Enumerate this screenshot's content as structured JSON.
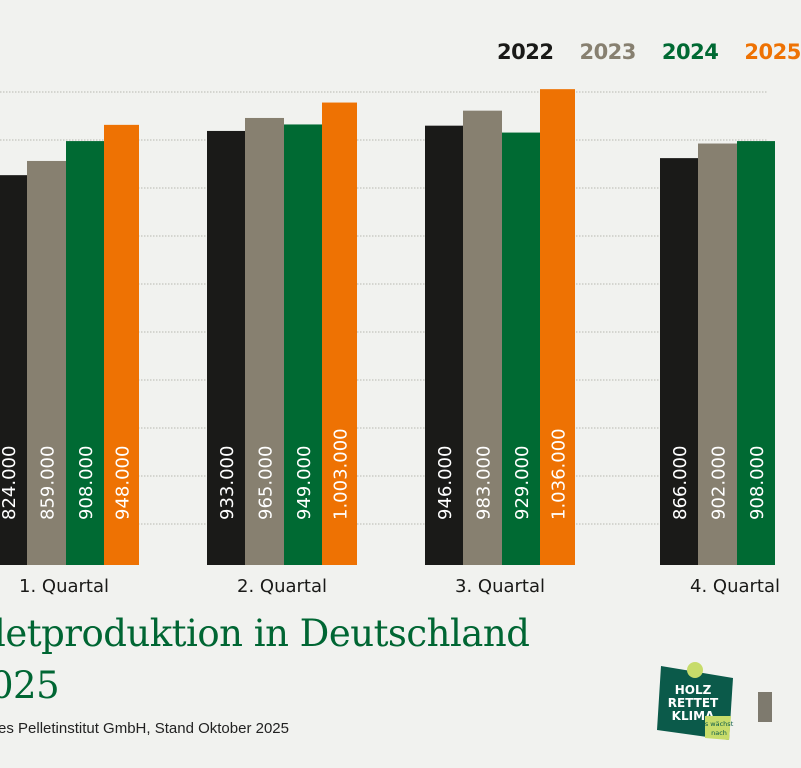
{
  "chart_data": {
    "type": "bar",
    "title_visible": [
      "letproduktion in Deutschland",
      "025"
    ],
    "source_visible": "es Pelletinstitut GmbH, Stand Oktober 2025",
    "categories": [
      "1. Quartal",
      "2. Quartal",
      "3. Quartal",
      "4. Quartal"
    ],
    "series": [
      {
        "name": "2022",
        "color": "#1a1a18",
        "values": [
          824000,
          933000,
          946000,
          866000
        ],
        "labels": [
          "824.000",
          "933.000",
          "946.000",
          "866.000"
        ]
      },
      {
        "name": "2023",
        "color": "#878070",
        "values": [
          859000,
          965000,
          983000,
          902000
        ],
        "labels": [
          "859.000",
          "965.000",
          "983.000",
          "902.000"
        ]
      },
      {
        "name": "2024",
        "color": "#006a33",
        "values": [
          908000,
          949000,
          929000,
          908000
        ],
        "labels": [
          "908.000",
          "949.000",
          "929.000",
          "908.000"
        ]
      },
      {
        "name": "2025",
        "color": "#ee7203",
        "values": [
          948000,
          1003000,
          1036000,
          null
        ],
        "labels": [
          "948.000",
          "1.003.000",
          "1.036.000",
          ""
        ]
      }
    ],
    "grid": true,
    "legend": "top-right"
  },
  "logo": {
    "lines": [
      "HOLZ",
      "RETTET",
      "KLIMA"
    ],
    "tagline": [
      "Es wächst",
      "nach"
    ]
  }
}
